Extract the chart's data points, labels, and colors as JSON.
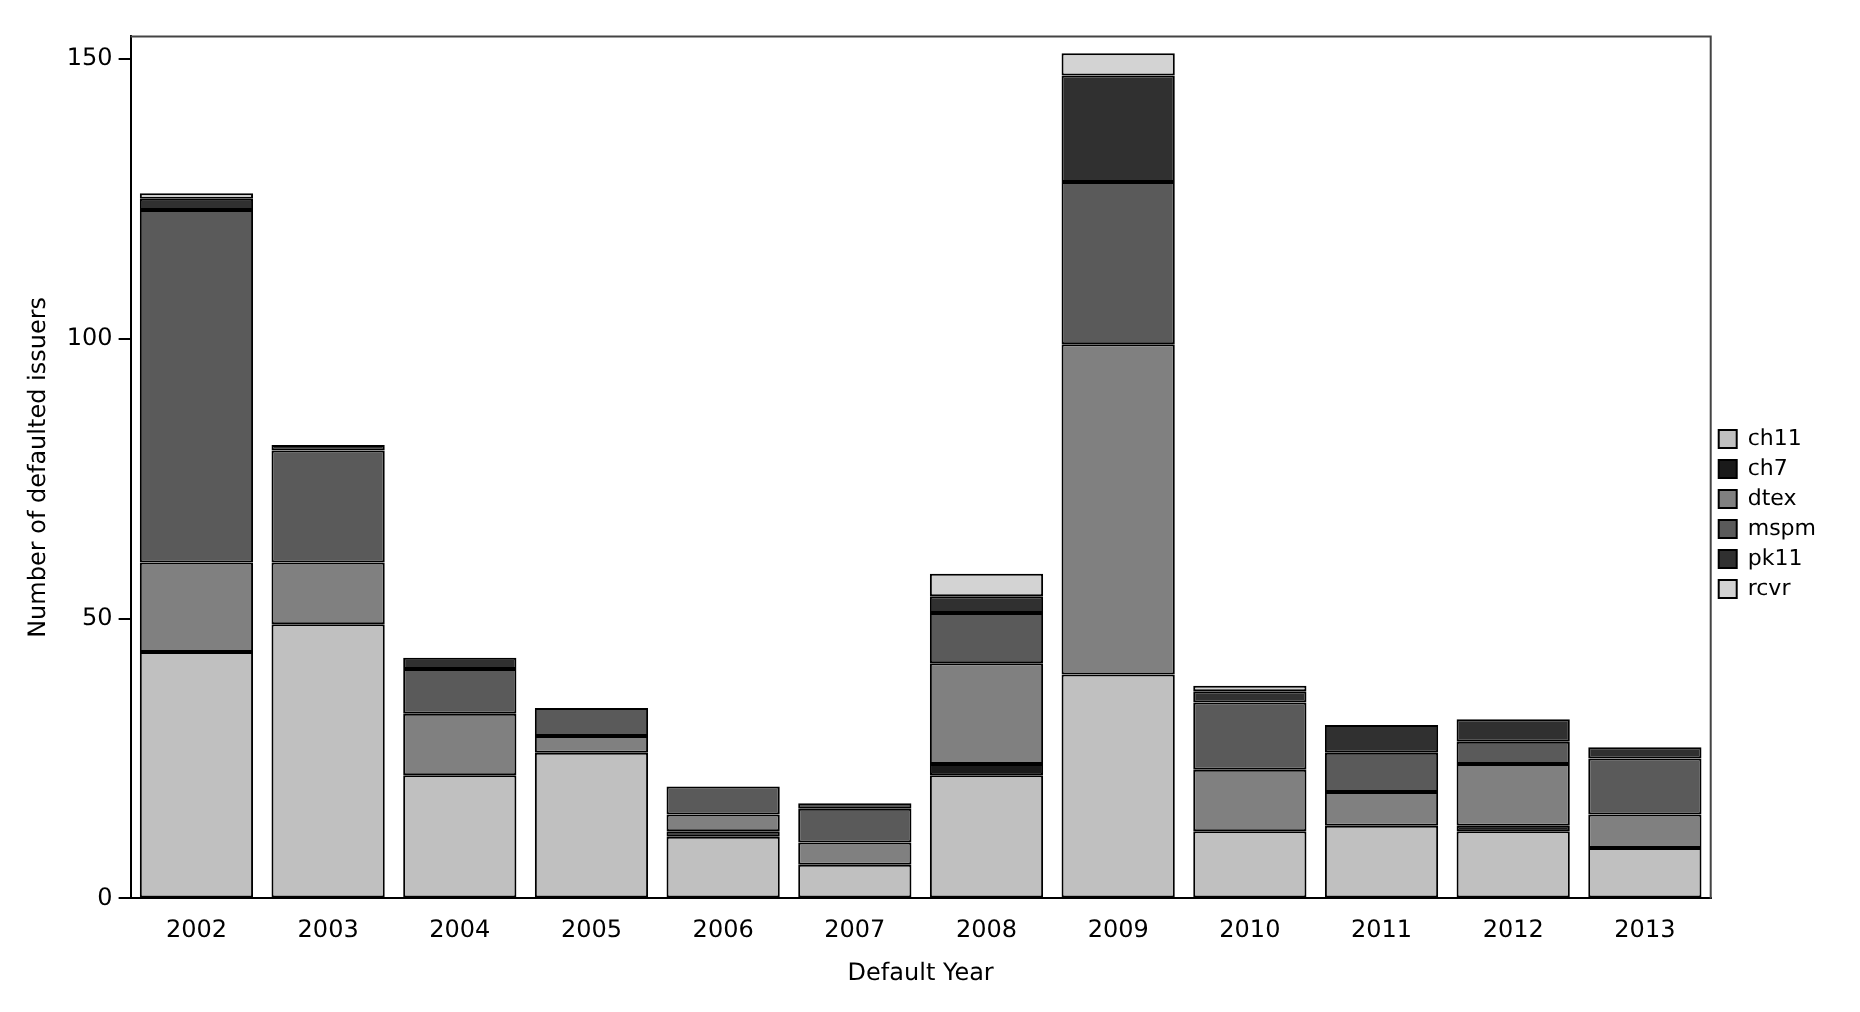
{
  "chart_data": {
    "type": "bar",
    "stacked": true,
    "xlabel": "Default Year",
    "ylabel": "Number of defaulted issuers",
    "categories": [
      "2002",
      "2003",
      "2004",
      "2005",
      "2006",
      "2007",
      "2008",
      "2009",
      "2010",
      "2011",
      "2012",
      "2013"
    ],
    "series": [
      {
        "name": "ch11",
        "color": "#c0c0c0",
        "values": [
          44,
          49,
          22,
          26,
          11,
          6,
          22,
          40,
          12,
          13,
          12,
          9
        ]
      },
      {
        "name": "ch7",
        "color": "#1a1a1a",
        "values": [
          0,
          0,
          0,
          0,
          1,
          0,
          2,
          0,
          0,
          0,
          1,
          0
        ]
      },
      {
        "name": "dtex",
        "color": "#808080",
        "values": [
          16,
          11,
          11,
          3,
          3,
          4,
          18,
          59,
          11,
          6,
          11,
          6
        ]
      },
      {
        "name": "mspm",
        "color": "#5a5a5a",
        "values": [
          63,
          20,
          8,
          5,
          5,
          6,
          9,
          29,
          12,
          7,
          4,
          10
        ]
      },
      {
        "name": "pk11",
        "color": "#303030",
        "values": [
          2,
          1,
          2,
          0,
          0,
          1,
          3,
          19,
          2,
          5,
          4,
          2
        ]
      },
      {
        "name": "rcvr",
        "color": "#d3d3d3",
        "values": [
          1,
          0,
          0,
          0,
          0,
          0,
          4,
          4,
          1,
          0,
          0,
          0
        ]
      }
    ],
    "ylim": [
      0,
      154
    ],
    "yticks": [
      0,
      50,
      100,
      150
    ],
    "grid": false,
    "legend": "right"
  }
}
